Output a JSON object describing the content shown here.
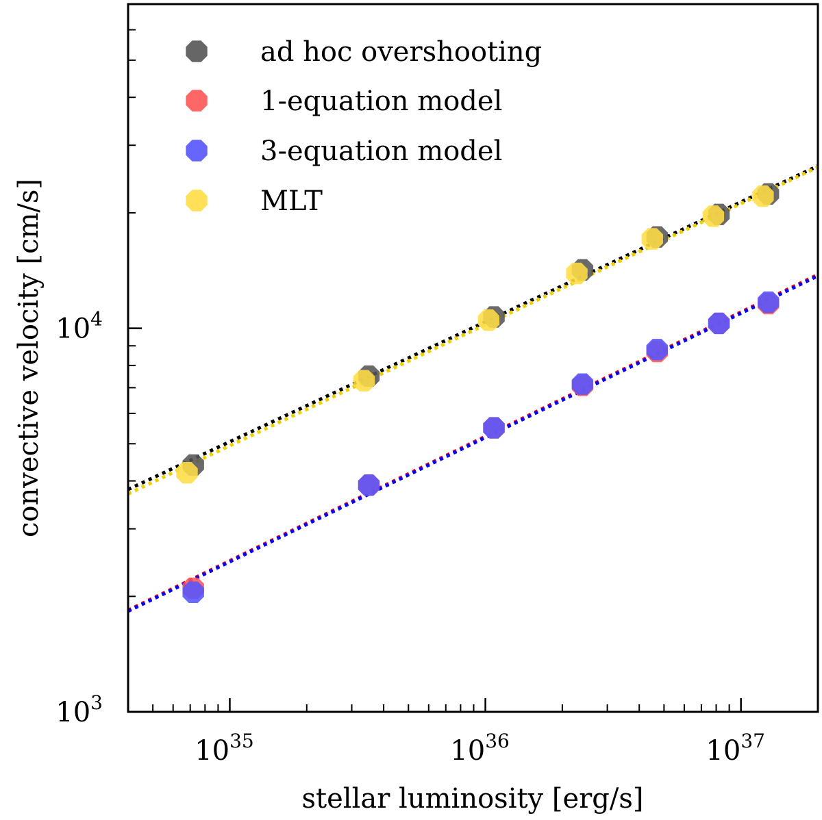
{
  "chart_data": {
    "type": "scatter",
    "title": "",
    "xlabel": "stellar luminosity [erg/s]",
    "ylabel": "convective velocity [cm/s]",
    "xscale": "log",
    "yscale": "log",
    "xlim": [
      4e+34,
      2e+37
    ],
    "ylim": [
      1000,
      70000
    ],
    "x_tick_labels": [
      {
        "base": "10",
        "exp": "35",
        "value": 1e+35
      },
      {
        "base": "10",
        "exp": "36",
        "value": 1e+36
      },
      {
        "base": "10",
        "exp": "37",
        "value": 1e+37
      }
    ],
    "y_tick_labels": [
      {
        "base": "10",
        "exp": "3",
        "value": 1000
      },
      {
        "base": "10",
        "exp": "4",
        "value": 10000
      }
    ],
    "legend_position": "top-left",
    "series": [
      {
        "name": "ad hoc overshooting",
        "color": "#555555",
        "fit_color": "#000000",
        "x": [
          7.2e+34,
          3.5e+35,
          1.08e+36,
          2.4e+36,
          4.7e+36,
          8.2e+36,
          1.28e+37
        ],
        "y": [
          4400,
          7500,
          10700,
          14200,
          17300,
          19800,
          22400
        ],
        "fit": {
          "x": [
            4e+34,
            2e+37
          ],
          "y": [
            3800,
            26500
          ]
        }
      },
      {
        "name": "1-equation model",
        "color": "#ff5555",
        "fit_color": "#ff0000",
        "x": [
          7.2e+34,
          3.5e+35,
          1.08e+36,
          2.4e+36,
          4.7e+36,
          8.2e+36,
          1.28e+37
        ],
        "y": [
          2100,
          3900,
          5500,
          7100,
          8700,
          10300,
          11600
        ],
        "fit": {
          "x": [
            4e+34,
            2e+37
          ],
          "y": [
            1840,
            13800
          ]
        }
      },
      {
        "name": "3-equation model",
        "color": "#5555ff",
        "fit_color": "#0000ff",
        "x": [
          7.2e+34,
          3.5e+35,
          1.08e+36,
          2.4e+36,
          4.7e+36,
          8.2e+36,
          1.28e+37
        ],
        "y": [
          2050,
          3900,
          5500,
          7150,
          8800,
          10300,
          11700
        ],
        "fit": {
          "x": [
            4e+34,
            2e+37
          ],
          "y": [
            1830,
            13700
          ]
        }
      },
      {
        "name": "MLT",
        "color": "#ffdd44",
        "fit_color": "#f0d000",
        "x": [
          6.8e+34,
          3.35e+35,
          1.03e+36,
          2.28e+36,
          4.5e+36,
          7.8e+36,
          1.22e+37
        ],
        "y": [
          4200,
          7300,
          10500,
          13900,
          17100,
          19600,
          22100
        ],
        "fit": {
          "x": [
            4e+34,
            2e+37
          ],
          "y": [
            3700,
            26300
          ]
        }
      }
    ]
  }
}
